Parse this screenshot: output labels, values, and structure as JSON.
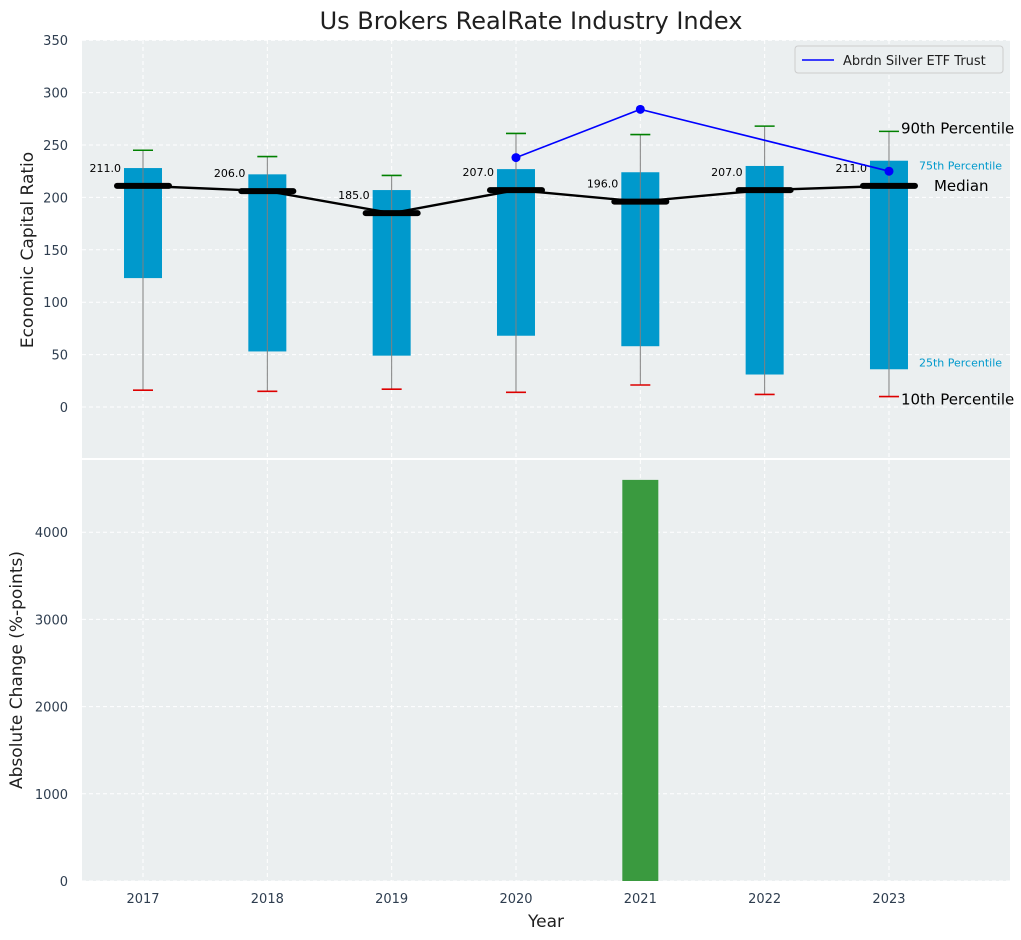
{
  "chart_data": [
    {
      "type": "box",
      "title": "Us Brokers RealRate Industry Index",
      "xlabel": "",
      "ylabel": "Economic Capital Ratio",
      "ylim": [
        -50,
        350
      ],
      "yticks": [
        0,
        50,
        100,
        150,
        200,
        250,
        300,
        350
      ],
      "categories": [
        "2017",
        "2018",
        "2019",
        "2020",
        "2021",
        "2022",
        "2023"
      ],
      "grid": true,
      "p10": [
        16,
        15,
        17,
        14,
        21,
        12,
        10
      ],
      "p25": [
        123,
        53,
        49,
        68,
        58,
        31,
        36
      ],
      "median": [
        211.0,
        206.0,
        185.0,
        207.0,
        196.0,
        207.0,
        211.0
      ],
      "median_labels": [
        "211.0",
        "206.0",
        "185.0",
        "207.0",
        "196.0",
        "207.0",
        "211.0"
      ],
      "p75": [
        228,
        222,
        207,
        227,
        224,
        230,
        235
      ],
      "p90": [
        245,
        239,
        221,
        261,
        260,
        268,
        263
      ],
      "series": [
        {
          "name": "Abrdn Silver ETF Trust",
          "x": [
            "2020",
            "2021",
            "2023"
          ],
          "values": [
            238,
            284,
            225
          ],
          "color": "#0000ff"
        }
      ],
      "annotations": {
        "p90": "90th Percentile",
        "p75": "75th Percentile",
        "median": "Median",
        "p25": "25th Percentile",
        "p10": "10th Percentile"
      },
      "legend_position": "top-right"
    },
    {
      "type": "bar",
      "xlabel": "Year",
      "ylabel": "Absolute Change (%-points)",
      "ylim": [
        0,
        4850
      ],
      "yticks": [
        0,
        1000,
        2000,
        3000,
        4000
      ],
      "categories": [
        "2017",
        "2018",
        "2019",
        "2020",
        "2021",
        "2022",
        "2023"
      ],
      "values": [
        0,
        0,
        0,
        0,
        4600,
        0,
        0
      ],
      "bar_color": "#3a9a3f",
      "grid": true
    }
  ],
  "colors": {
    "plot_bg": "#ebeff0",
    "box_fill": "#0099cc",
    "whisker": "#808080",
    "p90_cap": "#008000",
    "p10_cap": "#dd0000",
    "median_line": "#000000",
    "p75_text": "#0099cc",
    "p25_text": "#0099cc"
  }
}
